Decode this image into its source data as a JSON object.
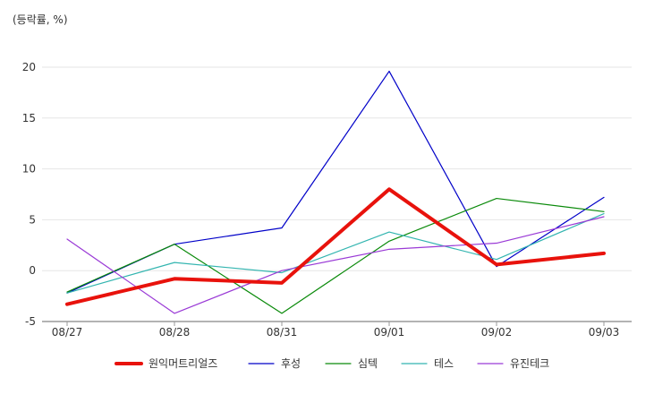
{
  "chart_data": {
    "type": "line",
    "unit_label": "(등락률, %)",
    "title": "",
    "xlabel": "",
    "ylabel": "",
    "categories": [
      "08/27",
      "08/28",
      "08/31",
      "09/01",
      "09/02",
      "09/03"
    ],
    "ylim": [
      -5,
      20
    ],
    "yticks": [
      -5,
      0,
      5,
      10,
      15,
      20
    ],
    "grid": true,
    "legend_position": "bottom",
    "series": [
      {
        "name": "원익머트리얼즈",
        "color": "#e8120c",
        "width": 4,
        "values": [
          -3.3,
          -0.8,
          -1.2,
          8.0,
          0.6,
          1.7
        ]
      },
      {
        "name": "후성",
        "color": "#0000c8",
        "width": 1.2,
        "values": [
          -2.2,
          2.6,
          4.2,
          19.6,
          0.4,
          7.2
        ]
      },
      {
        "name": "심텍",
        "color": "#0a8a0a",
        "width": 1.2,
        "values": [
          -2.1,
          2.6,
          -4.2,
          2.9,
          7.1,
          5.8
        ]
      },
      {
        "name": "테스",
        "color": "#33b5b0",
        "width": 1.2,
        "values": [
          -2.2,
          0.8,
          -0.2,
          3.8,
          1.1,
          5.6
        ]
      },
      {
        "name": "유진테크",
        "color": "#9a3ad6",
        "width": 1.2,
        "values": [
          3.1,
          -4.2,
          0.0,
          2.1,
          2.7,
          5.3
        ]
      }
    ]
  }
}
